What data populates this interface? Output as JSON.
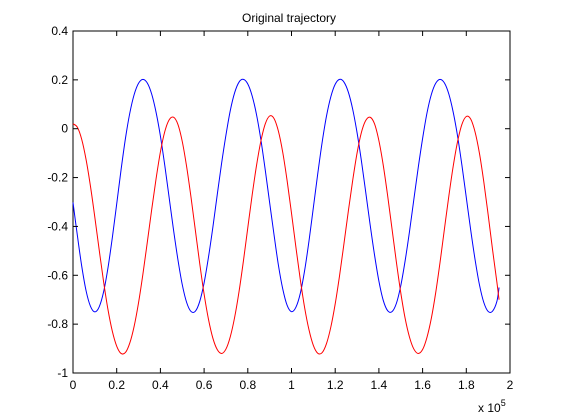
{
  "chart_data": {
    "type": "line",
    "title": "Original trajectory",
    "xlabel": "",
    "ylabel": "",
    "x_exponent_label": "x 10",
    "x_exponent_power": "5",
    "xlim": [
      0,
      2
    ],
    "ylim": [
      -1,
      0.4
    ],
    "x_ticks": [
      0,
      0.2,
      0.4,
      0.6,
      0.8,
      1,
      1.2,
      1.4,
      1.6,
      1.8,
      2
    ],
    "x_tick_labels": [
      "0",
      "0.2",
      "0.4",
      "0.6",
      "0.8",
      "1",
      "1.2",
      "1.4",
      "1.6",
      "1.8",
      "2"
    ],
    "y_ticks": [
      -1,
      -0.8,
      -0.6,
      -0.4,
      -0.2,
      0,
      0.2,
      0.4
    ],
    "y_tick_labels": [
      "-1",
      "-0.8",
      "-0.6",
      "-0.4",
      "-0.2",
      "0",
      "0.2",
      "0.4"
    ],
    "grid": false,
    "series": [
      {
        "color": "#0000ff",
        "x": [
          0,
          0.02,
          0.04,
          0.06,
          0.08,
          0.1,
          0.12,
          0.14,
          0.16,
          0.18,
          0.2,
          0.22,
          0.24,
          0.26,
          0.28,
          0.3,
          0.32,
          0.34,
          0.36,
          0.38,
          0.4,
          0.42,
          0.44,
          0.46,
          0.48,
          0.5,
          0.52,
          0.54,
          0.56,
          0.58,
          0.6,
          0.62,
          0.64,
          0.66,
          0.68,
          0.7,
          0.72,
          0.74,
          0.76,
          0.78,
          0.8,
          0.82,
          0.84,
          0.86,
          0.88,
          0.9,
          0.92,
          0.94,
          0.96,
          0.98,
          1,
          1.02,
          1.04,
          1.06,
          1.08,
          1.1,
          1.12,
          1.14,
          1.16,
          1.18,
          1.2,
          1.22,
          1.24,
          1.26,
          1.28,
          1.3,
          1.32,
          1.34,
          1.36,
          1.38,
          1.4,
          1.42,
          1.44,
          1.46,
          1.48,
          1.5,
          1.52,
          1.54,
          1.56,
          1.58,
          1.6,
          1.62,
          1.64,
          1.66,
          1.68,
          1.7,
          1.72,
          1.74,
          1.76,
          1.78,
          1.8,
          1.82,
          1.84,
          1.86,
          1.88,
          1.9,
          1.92,
          1.94,
          1.95
        ],
        "y": [
          -0.302,
          -0.437,
          -0.563,
          -0.664,
          -0.727,
          -0.75,
          -0.729,
          -0.668,
          -0.57,
          -0.446,
          -0.308,
          -0.168,
          -0.04,
          0.064,
          0.14,
          0.186,
          0.202,
          0.187,
          0.142,
          0.068,
          -0.03,
          -0.15,
          -0.282,
          -0.414,
          -0.535,
          -0.638,
          -0.711,
          -0.748,
          -0.747,
          -0.707,
          -0.631,
          -0.526,
          -0.404,
          -0.271,
          -0.142,
          -0.026,
          0.075,
          0.148,
          0.191,
          0.202,
          0.183,
          0.134,
          0.057,
          -0.046,
          -0.17,
          -0.303,
          -0.434,
          -0.558,
          -0.656,
          -0.723,
          -0.749,
          -0.731,
          -0.675,
          -0.581,
          -0.46,
          -0.323,
          -0.185,
          -0.057,
          0.051,
          0.131,
          0.182,
          0.202,
          0.191,
          0.15,
          0.08,
          -0.016,
          -0.132,
          -0.262,
          -0.394,
          -0.517,
          -0.624,
          -0.703,
          -0.745,
          -0.749,
          -0.715,
          -0.643,
          -0.541,
          -0.421,
          -0.289,
          -0.159,
          -0.04,
          0.064,
          0.14,
          0.186,
          0.202,
          0.187,
          0.142,
          0.068,
          -0.03,
          -0.15,
          -0.282,
          -0.414,
          -0.535,
          -0.638,
          -0.711,
          -0.748,
          -0.747,
          -0.707,
          -0.65
        ]
      },
      {
        "color": "#ff0000",
        "x": [
          0,
          0.02,
          0.04,
          0.06,
          0.08,
          0.1,
          0.12,
          0.14,
          0.16,
          0.18,
          0.2,
          0.22,
          0.24,
          0.26,
          0.28,
          0.3,
          0.32,
          0.34,
          0.36,
          0.38,
          0.4,
          0.42,
          0.44,
          0.46,
          0.48,
          0.5,
          0.52,
          0.54,
          0.56,
          0.58,
          0.6,
          0.62,
          0.64,
          0.66,
          0.68,
          0.7,
          0.72,
          0.74,
          0.76,
          0.78,
          0.8,
          0.82,
          0.84,
          0.86,
          0.88,
          0.9,
          0.92,
          0.94,
          0.96,
          0.98,
          1,
          1.02,
          1.04,
          1.06,
          1.08,
          1.1,
          1.12,
          1.14,
          1.16,
          1.18,
          1.2,
          1.22,
          1.24,
          1.26,
          1.28,
          1.3,
          1.32,
          1.34,
          1.36,
          1.38,
          1.4,
          1.42,
          1.44,
          1.46,
          1.48,
          1.5,
          1.52,
          1.54,
          1.56,
          1.58,
          1.6,
          1.62,
          1.64,
          1.66,
          1.68,
          1.7,
          1.72,
          1.74,
          1.76,
          1.78,
          1.8,
          1.82,
          1.84,
          1.86,
          1.88,
          1.9,
          1.92,
          1.94,
          1.95
        ],
        "y": [
          0.02,
          0.006,
          -0.044,
          -0.127,
          -0.236,
          -0.363,
          -0.497,
          -0.626,
          -0.74,
          -0.829,
          -0.89,
          -0.92,
          -0.916,
          -0.877,
          -0.808,
          -0.712,
          -0.595,
          -0.465,
          -0.332,
          -0.206,
          -0.095,
          -0.012,
          0.036,
          0.047,
          0.018,
          -0.052,
          -0.155,
          -0.28,
          -0.416,
          -0.552,
          -0.677,
          -0.78,
          -0.857,
          -0.904,
          -0.92,
          -0.902,
          -0.851,
          -0.771,
          -0.666,
          -0.541,
          -0.405,
          -0.271,
          -0.15,
          -0.05,
          0.02,
          0.052,
          0.042,
          -0.01,
          -0.097,
          -0.213,
          -0.346,
          -0.484,
          -0.616,
          -0.732,
          -0.823,
          -0.887,
          -0.919,
          -0.917,
          -0.88,
          -0.812,
          -0.717,
          -0.601,
          -0.471,
          -0.338,
          -0.212,
          -0.1,
          -0.015,
          0.034,
          0.047,
          0.02,
          -0.049,
          -0.15,
          -0.274,
          -0.41,
          -0.546,
          -0.671,
          -0.776,
          -0.853,
          -0.902,
          -0.92,
          -0.904,
          -0.854,
          -0.776,
          -0.671,
          -0.546,
          -0.41,
          -0.276,
          -0.154,
          -0.053,
          0.018,
          0.05,
          0.04,
          -0.013,
          -0.1,
          -0.217,
          -0.352,
          -0.494,
          -0.628,
          -0.7
        ]
      }
    ]
  }
}
